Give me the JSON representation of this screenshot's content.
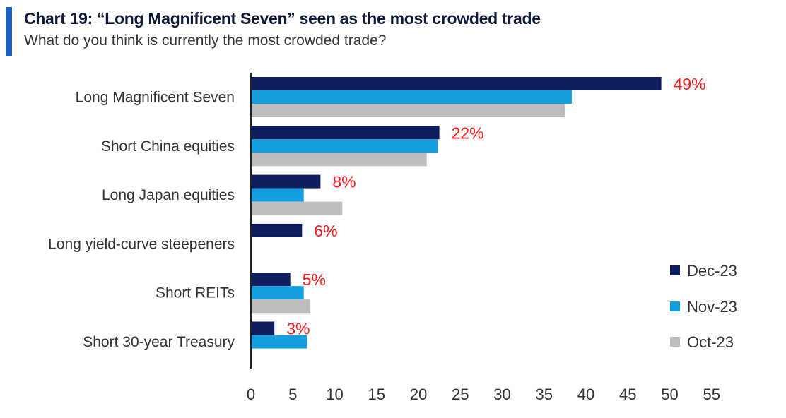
{
  "header": {
    "title": "Chart 19: “Long Magnificent Seven” seen as the most crowded trade",
    "subtitle": "What do you think is currently the most crowded trade?"
  },
  "colors": {
    "accent": "#1f5fbf",
    "dec": "#0d1d5e",
    "nov": "#169fde",
    "oct": "#bdbdbd",
    "label_red": "#ff1a1a",
    "text": "#333333"
  },
  "chart_data": {
    "type": "bar",
    "orientation": "horizontal",
    "title": "Chart 19: “Long Magnificent Seven” seen as the most crowded trade",
    "subtitle": "What do you think is currently the most crowded trade?",
    "categories": [
      "Long Magnificent Seven",
      "Short China equities",
      "Long Japan equities",
      "Long yield-curve steepeners",
      "Short REITs",
      "Short 30-year Treasury"
    ],
    "series": [
      {
        "name": "Dec-23",
        "color": "#0d1d5e",
        "values": [
          49,
          22.5,
          8.3,
          6.1,
          4.7,
          2.8
        ]
      },
      {
        "name": "Nov-23",
        "color": "#169fde",
        "values": [
          38.3,
          22.3,
          6.3,
          null,
          6.3,
          6.7
        ]
      },
      {
        "name": "Oct-23",
        "color": "#bdbdbd",
        "values": [
          37.5,
          21,
          10.9,
          null,
          7.1,
          null
        ]
      }
    ],
    "data_labels": [
      "49%",
      "22%",
      "8%",
      "6%",
      "5%",
      "3%"
    ],
    "xlim": [
      0,
      55
    ],
    "xticks": [
      0,
      5,
      10,
      15,
      20,
      25,
      30,
      35,
      40,
      45,
      50,
      55
    ],
    "xlabel": "",
    "ylabel": "",
    "legend_position": "bottom-right"
  }
}
